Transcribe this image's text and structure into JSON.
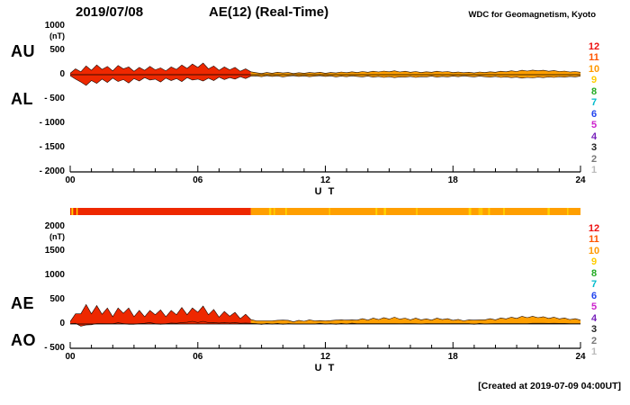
{
  "header": {
    "date": "2019/07/08",
    "title": "AE(12) (Real-Time)",
    "source": "WDC for Geomagnetism, Kyoto"
  },
  "footer": {
    "created_note": "[Created at 2019-07-09 04:00UT]"
  },
  "panels": [
    {
      "label_upper": "AU",
      "label_lower": "AL",
      "unit": "(nT)",
      "ytick_values": [
        1000,
        500,
        0,
        -500,
        -1000,
        -1500,
        -2000
      ],
      "ytick_labels": [
        "1000",
        "500",
        "0",
        "- 500",
        "- 1000",
        "- 1500",
        "- 2000"
      ],
      "xlabel": "U T",
      "xtick_labels": [
        "00",
        "06",
        "12",
        "18",
        "24"
      ]
    },
    {
      "label_upper": "AE",
      "label_lower": "AO",
      "unit": "(nT)",
      "ytick_values": [
        2000,
        1500,
        1000,
        500,
        0,
        -500
      ],
      "ytick_labels": [
        "2000",
        "1500",
        "1000",
        "500",
        "0",
        "- 500"
      ],
      "xlabel": "U T",
      "xtick_labels": [
        "00",
        "06",
        "12",
        "18",
        "24"
      ]
    }
  ],
  "legend": {
    "station_numbers": [
      {
        "n": "12",
        "color": "#ee1111"
      },
      {
        "n": "11",
        "color": "#ff5500"
      },
      {
        "n": "10",
        "color": "#ff9900"
      },
      {
        "n": "9",
        "color": "#ffcc00"
      },
      {
        "n": "8",
        "color": "#22aa22"
      },
      {
        "n": "7",
        "color": "#00bbcc"
      },
      {
        "n": "6",
        "color": "#2244ee"
      },
      {
        "n": "5",
        "color": "#cc22cc"
      },
      {
        "n": "4",
        "color": "#7722bb"
      },
      {
        "n": "3",
        "color": "#222222"
      },
      {
        "n": "2",
        "color": "#777777"
      },
      {
        "n": "1",
        "color": "#bbbbbb"
      }
    ]
  },
  "station_color_segments": [
    {
      "from_hour": 0,
      "to_hour": 8.5,
      "stations": 12,
      "color": "#ee2800"
    },
    {
      "from_hour": 8.5,
      "to_hour": 24,
      "stations": 10,
      "color": "#ff9f00"
    }
  ],
  "colorbar_streaks": [
    {
      "at_hour": 0.1,
      "width_hour": 0.08,
      "color": "#ffd400"
    },
    {
      "at_hour": 0.32,
      "width_hour": 0.06,
      "color": "#ffd400"
    },
    {
      "at_hour": 9.4,
      "width_hour": 0.1,
      "color": "#ffd400"
    },
    {
      "at_hour": 9.6,
      "width_hour": 0.06,
      "color": "#ffd400"
    },
    {
      "at_hour": 10.15,
      "width_hour": 0.07,
      "color": "#ffd400"
    },
    {
      "at_hour": 12.2,
      "width_hour": 0.05,
      "color": "#ffd400"
    },
    {
      "at_hour": 14.4,
      "width_hour": 0.08,
      "color": "#ffd400"
    },
    {
      "at_hour": 14.8,
      "width_hour": 0.1,
      "color": "#ffd400"
    },
    {
      "at_hour": 16.3,
      "width_hour": 0.06,
      "color": "#ffd400"
    },
    {
      "at_hour": 18.8,
      "width_hour": 0.12,
      "color": "#ffd400"
    },
    {
      "at_hour": 19.3,
      "width_hour": 0.2,
      "color": "#ffc400"
    },
    {
      "at_hour": 19.7,
      "width_hour": 0.08,
      "color": "#ffd400"
    },
    {
      "at_hour": 20.4,
      "width_hour": 0.07,
      "color": "#ffd400"
    },
    {
      "at_hour": 22.5,
      "width_hour": 0.1,
      "color": "#ffd400"
    },
    {
      "at_hour": 23.4,
      "width_hour": 0.06,
      "color": "#ffd400"
    }
  ],
  "chart_data": [
    {
      "type": "area",
      "panel": "AU / AL auroral electrojet indices",
      "x_start": 0,
      "x_step_hours": 0.25,
      "x_end": 24,
      "xlabel": "U T",
      "xtick_hours": [
        0,
        6,
        12,
        18,
        24
      ],
      "ylabel": "nT",
      "ylim": [
        -2000,
        1000
      ],
      "yticks": [
        1000,
        500,
        0,
        -500,
        -1000,
        -1500,
        -2000
      ],
      "series": [
        {
          "name": "AU",
          "values": [
            30,
            120,
            60,
            180,
            90,
            200,
            110,
            170,
            80,
            190,
            120,
            160,
            70,
            150,
            90,
            170,
            100,
            140,
            80,
            160,
            110,
            200,
            130,
            220,
            150,
            240,
            120,
            180,
            90,
            160,
            100,
            150,
            70,
            120,
            60,
            40,
            25,
            45,
            30,
            50,
            35,
            45,
            25,
            40,
            30,
            45,
            35,
            50,
            30,
            45,
            35,
            55,
            40,
            60,
            45,
            65,
            50,
            70,
            55,
            75,
            60,
            80,
            55,
            70,
            50,
            65,
            45,
            60,
            50,
            70,
            55,
            65,
            45,
            55,
            40,
            50,
            35,
            55,
            45,
            60,
            50,
            70,
            60,
            80,
            65,
            90,
            75,
            95,
            80,
            90,
            70,
            85,
            65,
            75,
            55,
            65,
            50
          ]
        },
        {
          "name": "AL",
          "values": [
            -20,
            -90,
            -150,
            -220,
            -120,
            -180,
            -90,
            -160,
            -70,
            -140,
            -100,
            -170,
            -80,
            -130,
            -60,
            -110,
            -90,
            -150,
            -70,
            -120,
            -80,
            -140,
            -60,
            -110,
            -90,
            -130,
            -70,
            -120,
            -50,
            -100,
            -60,
            -90,
            -40,
            -80,
            -30,
            -25,
            -40,
            -20,
            -35,
            -25,
            -45,
            -30,
            -20,
            -35,
            -25,
            -40,
            -30,
            -20,
            -35,
            -25,
            -45,
            -30,
            -40,
            -25,
            -35,
            -45,
            -30,
            -50,
            -35,
            -55,
            -40,
            -60,
            -45,
            -50,
            -35,
            -55,
            -40,
            -45,
            -30,
            -50,
            -35,
            -45,
            -30,
            -40,
            -25,
            -35,
            -45,
            -30,
            -40,
            -50,
            -35,
            -55,
            -45,
            -60,
            -50,
            -70,
            -55,
            -65,
            -50,
            -60,
            -45,
            -55,
            -40,
            -50,
            -35,
            -45,
            -30
          ]
        }
      ]
    },
    {
      "type": "area",
      "panel": "AE / AO auroral electrojet indices",
      "x_start": 0,
      "x_step_hours": 0.25,
      "x_end": 24,
      "xlabel": "U T",
      "xtick_hours": [
        0,
        6,
        12,
        18,
        24
      ],
      "ylabel": "nT",
      "ylim": [
        -500,
        2000
      ],
      "yticks": [
        2000,
        1500,
        1000,
        500,
        0,
        -500
      ],
      "series": [
        {
          "name": "AE",
          "derived": "AU - AL"
        },
        {
          "name": "AO",
          "derived": "(AU + AL) / 2"
        }
      ]
    }
  ]
}
